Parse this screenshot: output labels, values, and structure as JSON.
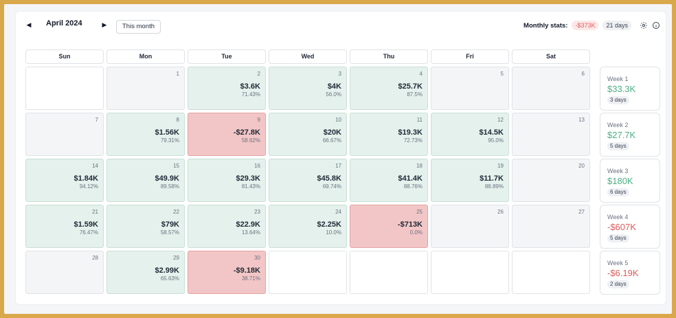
{
  "header": {
    "month": "April 2024",
    "this_month_label": "This month",
    "stats_label": "Monthly stats:",
    "monthly_pnl": "-$373K",
    "monthly_days": "21 days",
    "prev_icon": "caret-left-icon",
    "next_icon": "caret-right-icon",
    "settings_icon": "gear-icon",
    "info_icon": "info-icon"
  },
  "colors": {
    "positive_bg": "#e4f1ec",
    "negative_bg": "#f2c6c6",
    "positive_text": "#4caf84",
    "negative_text": "#e05a5a"
  },
  "weekdays": [
    "Sun",
    "Mon",
    "Tue",
    "Wed",
    "Thu",
    "Fri",
    "Sat"
  ],
  "weeks": [
    [
      {
        "day": "",
        "state": "empty"
      },
      {
        "day": "1",
        "state": "muted"
      },
      {
        "day": "2",
        "state": "pos",
        "pnl": "$3.6K",
        "rate": "71.43%"
      },
      {
        "day": "3",
        "state": "pos",
        "pnl": "$4K",
        "rate": "56.0%"
      },
      {
        "day": "4",
        "state": "pos",
        "pnl": "$25.7K",
        "rate": "87.5%"
      },
      {
        "day": "5",
        "state": "muted"
      },
      {
        "day": "6",
        "state": "muted"
      }
    ],
    [
      {
        "day": "7",
        "state": "muted"
      },
      {
        "day": "8",
        "state": "pos",
        "pnl": "$1.56K",
        "rate": "79.31%"
      },
      {
        "day": "9",
        "state": "neg",
        "pnl": "-$27.8K",
        "rate": "58.62%"
      },
      {
        "day": "10",
        "state": "pos",
        "pnl": "$20K",
        "rate": "66.67%"
      },
      {
        "day": "11",
        "state": "pos",
        "pnl": "$19.3K",
        "rate": "72.73%"
      },
      {
        "day": "12",
        "state": "pos",
        "pnl": "$14.5K",
        "rate": "95.0%"
      },
      {
        "day": "13",
        "state": "muted"
      }
    ],
    [
      {
        "day": "14",
        "state": "pos",
        "pnl": "$1.84K",
        "rate": "94.12%"
      },
      {
        "day": "15",
        "state": "pos",
        "pnl": "$49.9K",
        "rate": "89.58%"
      },
      {
        "day": "16",
        "state": "pos",
        "pnl": "$29.3K",
        "rate": "81.43%"
      },
      {
        "day": "17",
        "state": "pos",
        "pnl": "$45.8K",
        "rate": "69.74%"
      },
      {
        "day": "18",
        "state": "pos",
        "pnl": "$41.4K",
        "rate": "88.76%"
      },
      {
        "day": "19",
        "state": "pos",
        "pnl": "$11.7K",
        "rate": "88.89%"
      },
      {
        "day": "20",
        "state": "muted"
      }
    ],
    [
      {
        "day": "21",
        "state": "pos",
        "pnl": "$1.59K",
        "rate": "76.47%"
      },
      {
        "day": "22",
        "state": "pos",
        "pnl": "$79K",
        "rate": "58.57%"
      },
      {
        "day": "23",
        "state": "pos",
        "pnl": "$22.9K",
        "rate": "13.64%"
      },
      {
        "day": "24",
        "state": "pos",
        "pnl": "$2.25K",
        "rate": "10.0%"
      },
      {
        "day": "25",
        "state": "neg",
        "pnl": "-$713K",
        "rate": "0.0%"
      },
      {
        "day": "26",
        "state": "muted"
      },
      {
        "day": "27",
        "state": "muted"
      }
    ],
    [
      {
        "day": "28",
        "state": "muted"
      },
      {
        "day": "29",
        "state": "pos",
        "pnl": "$2.99K",
        "rate": "65.63%"
      },
      {
        "day": "30",
        "state": "neg",
        "pnl": "-$9.18K",
        "rate": "38.71%"
      },
      {
        "day": "",
        "state": "empty"
      },
      {
        "day": "",
        "state": "empty"
      },
      {
        "day": "",
        "state": "empty"
      },
      {
        "day": "",
        "state": "empty"
      }
    ]
  ],
  "week_summaries": [
    {
      "label": "Week 1",
      "value": "$33.3K",
      "days": "3 days",
      "sign": "pos"
    },
    {
      "label": "Week 2",
      "value": "$27.7K",
      "days": "5 days",
      "sign": "pos"
    },
    {
      "label": "Week 3",
      "value": "$180K",
      "days": "6 days",
      "sign": "pos"
    },
    {
      "label": "Week 4",
      "value": "-$607K",
      "days": "5 days",
      "sign": "neg"
    },
    {
      "label": "Week 5",
      "value": "-$6.19K",
      "days": "2 days",
      "sign": "neg"
    }
  ]
}
